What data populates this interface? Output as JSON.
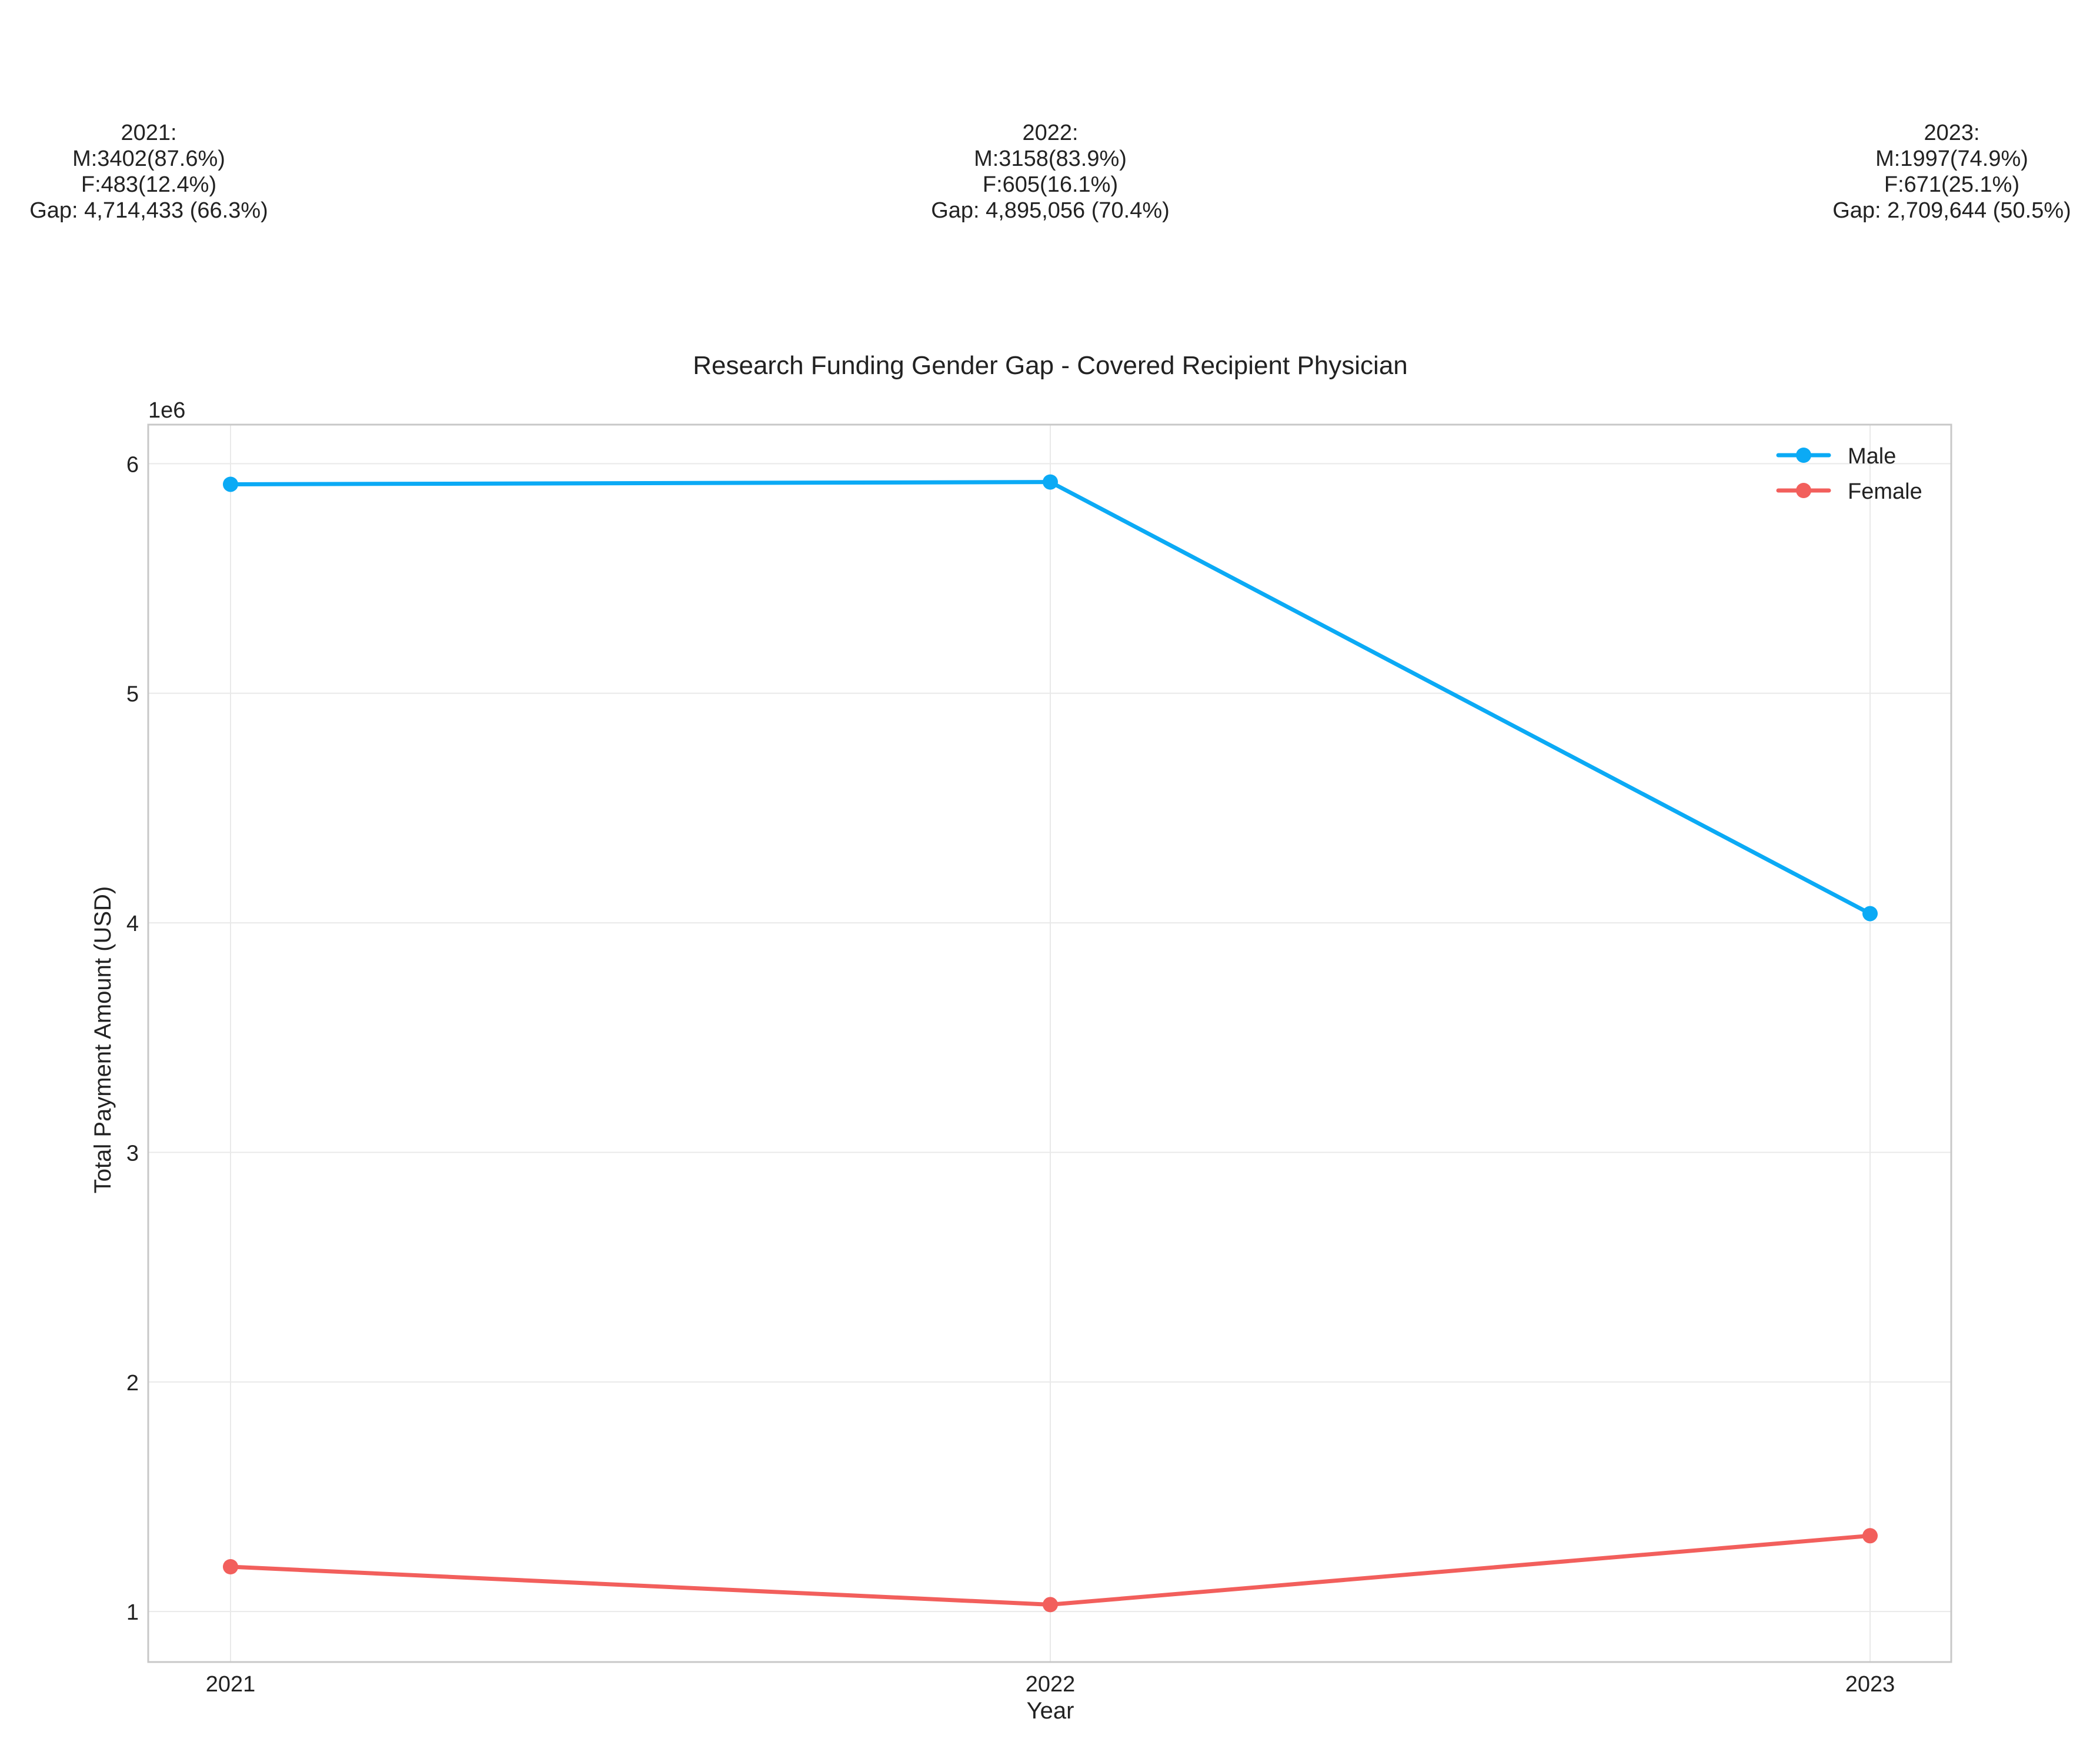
{
  "chart_data": {
    "type": "line",
    "title": "Research Funding Gender Gap - Covered Recipient Physician",
    "xlabel": "Year",
    "ylabel": "Total Payment Amount (USD)",
    "y_offset_label": "1e6",
    "x": [
      "2021",
      "2022",
      "2023"
    ],
    "series": [
      {
        "name": "Male",
        "color": "#0BAAF5",
        "values": [
          5910000,
          5920000,
          4040000
        ]
      },
      {
        "name": "Female",
        "color": "#F25F5C",
        "values": [
          1195000,
          1030000,
          1330000
        ]
      }
    ],
    "ylim": [
      780000,
      6170000
    ],
    "yticks": [
      1000000,
      2000000,
      3000000,
      4000000,
      5000000,
      6000000
    ],
    "ytick_labels": [
      "1",
      "2",
      "3",
      "4",
      "5",
      "6"
    ],
    "grid": true,
    "legend_position": "top-right",
    "annotations": [
      {
        "x": "2021",
        "lines": [
          "2021:",
          "M:3402(87.6%)",
          "F:483(12.4%)",
          "Gap: 4,714,433 (66.3%)"
        ]
      },
      {
        "x": "2022",
        "lines": [
          "2022:",
          "M:3158(83.9%)",
          "F:605(16.1%)",
          "Gap: 4,895,056 (70.4%)"
        ]
      },
      {
        "x": "2023",
        "lines": [
          "2023:",
          "M:1997(74.9%)",
          "F:671(25.1%)",
          "Gap: 2,709,644 (50.5%)"
        ]
      }
    ]
  }
}
